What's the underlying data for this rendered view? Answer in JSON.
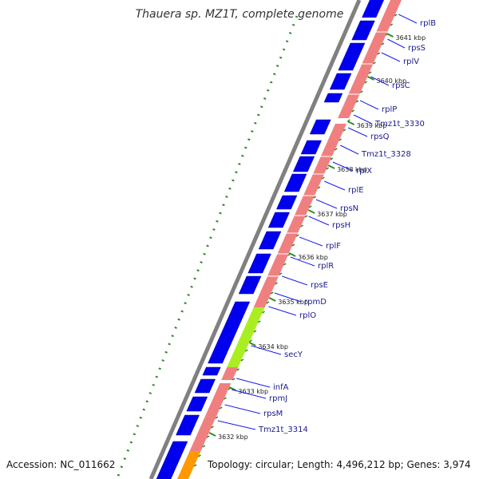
{
  "title": "Thauera sp. MZ1T, complete genome",
  "accession": "Accession: NC_011662",
  "topology": "Topology: circular; Length: 4,496,212 bp; Genes: 3,974",
  "colors": {
    "backbone": "#808080",
    "cds": "#0000ee",
    "operon": "#f08080",
    "secY": "#aaee22",
    "orange": "#ff9900",
    "label": "#1a1a8c",
    "dotted": "#2e8b2e"
  },
  "ticks": [
    "3641 kbp",
    "3640 kbp",
    "3639 kbp",
    "3638 kbp",
    "3637 kbp",
    "3636 kbp",
    "3635 kbp",
    "3634 kbp",
    "3633 kbp",
    "3632 kbp"
  ],
  "genes": [
    "rplB",
    "rpsS",
    "rplV",
    "rpsC",
    "rplP",
    "Tmz1t_3330",
    "rpsQ",
    "Tmz1t_3328",
    "rplX",
    "rplE",
    "rpsN",
    "rpsH",
    "rplF",
    "rplR",
    "rpsE",
    "rpmD",
    "rplO",
    "secY",
    "infA",
    "rpmJ",
    "rpsM",
    "Tmz1t_3314"
  ]
}
